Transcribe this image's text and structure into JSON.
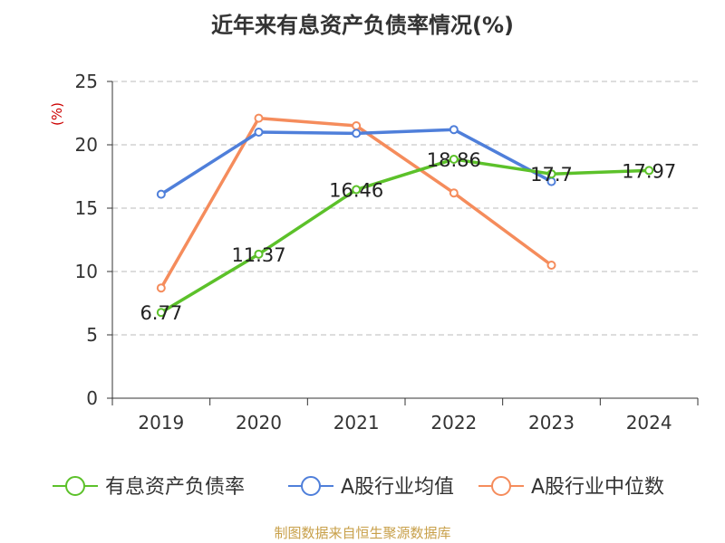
{
  "title": "近年来有息资产负债率情况(%)",
  "source": "制图数据来自恒生聚源数据库",
  "colors": {
    "green": "#5cc12a",
    "blue": "#4f7fda",
    "orange": "#f58c5c",
    "axis": "#333333",
    "grid": "#bbbbbb",
    "unit": "#cc0000"
  },
  "chart_data": {
    "type": "line",
    "title": "近年来有息资产负债率情况(%)",
    "ylabel": "(%)",
    "xlabel": "",
    "categories": [
      "2019",
      "2020",
      "2021",
      "2022",
      "2023",
      "2024"
    ],
    "ylim": [
      0,
      25
    ],
    "yticks": [
      "0",
      "5",
      "10",
      "15",
      "20",
      "25"
    ],
    "grid": true,
    "legend_position": "bottom",
    "series": [
      {
        "name": "有息资产负债率",
        "color": "green",
        "values": [
          6.77,
          11.37,
          16.46,
          18.86,
          17.7,
          17.97
        ],
        "labels": [
          "6.77",
          "11.37",
          "16.46",
          "18.86",
          "17.7",
          "17.97"
        ]
      },
      {
        "name": "A股行业均值",
        "color": "blue",
        "values": [
          16.1,
          21.0,
          20.9,
          21.2,
          17.1,
          null
        ]
      },
      {
        "name": "A股行业中位数",
        "color": "orange",
        "values": [
          8.7,
          22.1,
          21.5,
          16.2,
          10.5,
          null
        ]
      }
    ]
  }
}
